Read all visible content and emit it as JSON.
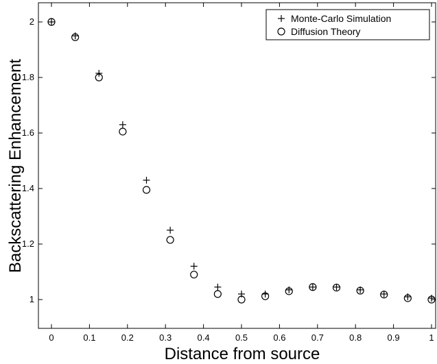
{
  "chart_data": {
    "type": "scatter",
    "title": "",
    "xlabel": "Distance from source",
    "ylabel": "Backscattering Enhancement",
    "xlim": [
      -0.02,
      1.0
    ],
    "ylim": [
      0.9,
      2.05
    ],
    "xticks": [
      "0",
      "0.1",
      "0.2",
      "0.3",
      "0.4",
      "0.5",
      "0.6",
      "0.7",
      "0.8",
      "0.9",
      "1"
    ],
    "yticks": [
      "1",
      "1.2",
      "1.4",
      "1.6",
      "1.8",
      "2"
    ],
    "grid": false,
    "legend_position": "top-right",
    "series": [
      {
        "name": "Monte-Carlo Simulation",
        "marker": "plus",
        "x": [
          0,
          0.0625,
          0.125,
          0.1875,
          0.25,
          0.3125,
          0.375,
          0.4375,
          0.5,
          0.5625,
          0.625,
          0.6875,
          0.75,
          0.8125,
          0.875,
          0.9375,
          1.0
        ],
        "y": [
          2.0,
          1.95,
          1.815,
          1.63,
          1.43,
          1.25,
          1.12,
          1.045,
          1.02,
          1.02,
          1.035,
          1.045,
          1.045,
          1.035,
          1.02,
          1.01,
          1.005
        ]
      },
      {
        "name": "Diffusion Theory",
        "marker": "circle",
        "x": [
          0,
          0.0625,
          0.125,
          0.1875,
          0.25,
          0.3125,
          0.375,
          0.4375,
          0.5,
          0.5625,
          0.625,
          0.6875,
          0.75,
          0.8125,
          0.875,
          0.9375,
          1.0
        ],
        "y": [
          2.0,
          1.945,
          1.8,
          1.605,
          1.395,
          1.215,
          1.09,
          1.02,
          1.0,
          1.012,
          1.03,
          1.045,
          1.043,
          1.032,
          1.018,
          1.005,
          1.0
        ]
      }
    ]
  }
}
